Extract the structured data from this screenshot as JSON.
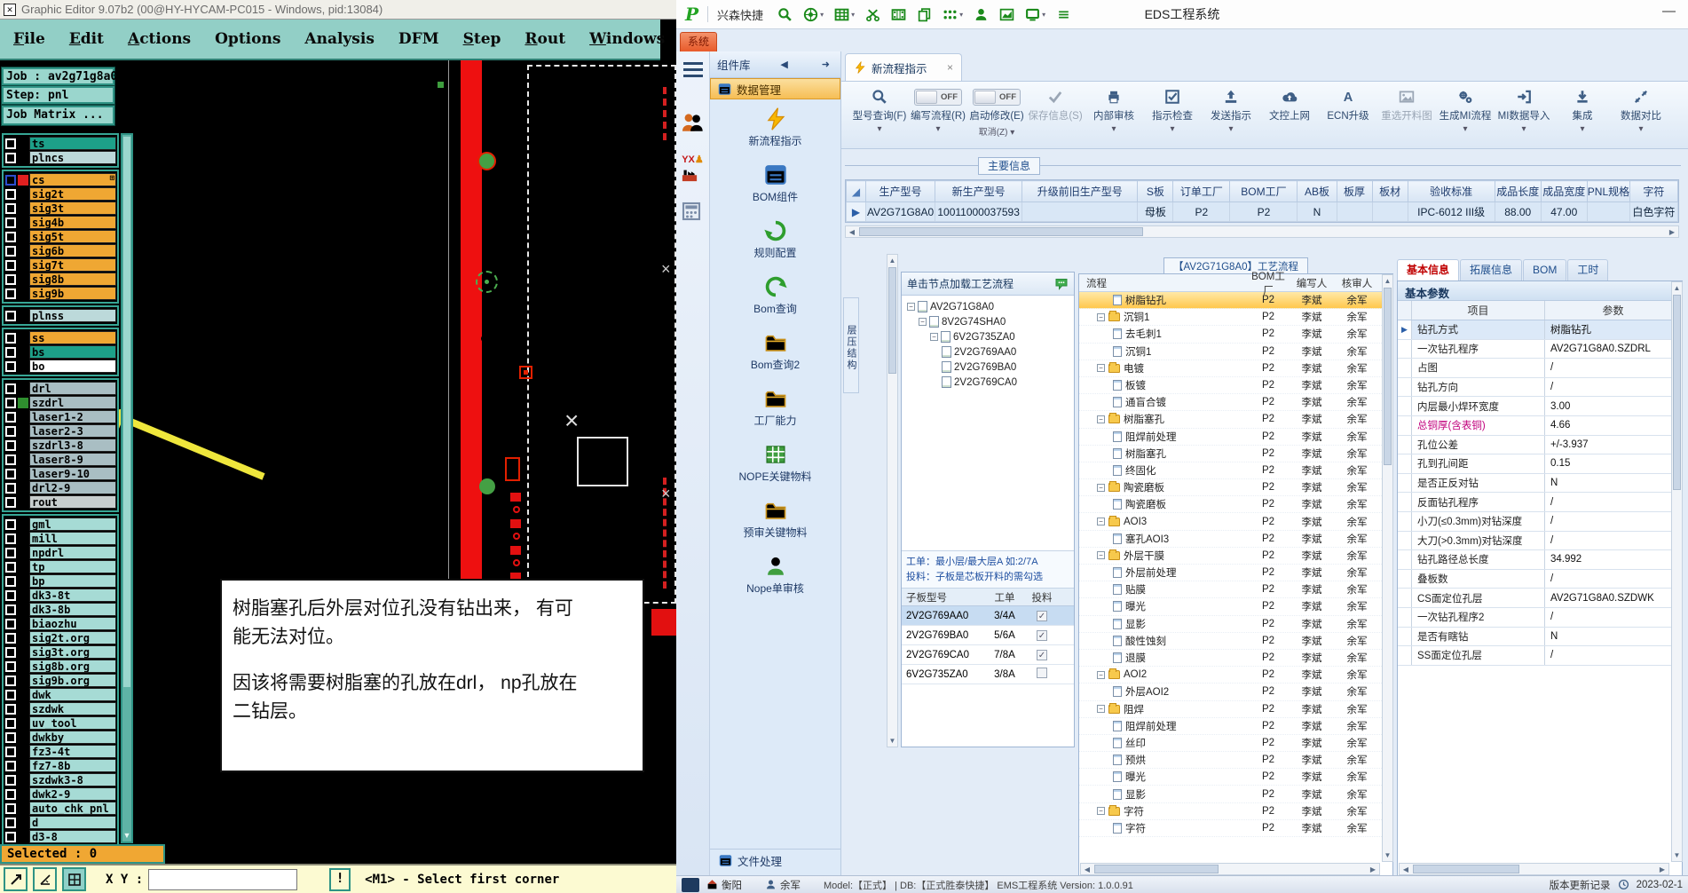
{
  "left_app": {
    "title": "Graphic Editor 9.07b2 (00@HY-HYCAM-PC015 - Windows, pid:13084)",
    "menus": [
      {
        "label": "File",
        "u": true
      },
      {
        "label": "Edit",
        "u": true
      },
      {
        "label": "Actions",
        "u": true
      },
      {
        "label": "Options",
        "u": false
      },
      {
        "label": "Analysis",
        "u": false
      },
      {
        "label": "DFM",
        "u": false
      },
      {
        "label": "Step",
        "u": true
      },
      {
        "label": "Rout",
        "u": true
      },
      {
        "label": "Windows",
        "u": true
      }
    ],
    "job_label": "Job : av2g71g8a0",
    "step_label": "Step: pnl",
    "job_matrix_label": "Job Matrix ...",
    "layer_groups": [
      {
        "layers": [
          {
            "n": "ts",
            "c": "teal"
          },
          {
            "n": "plncs",
            "c": "pale"
          }
        ]
      },
      {
        "layers": [
          {
            "n": "cs",
            "c": "orange",
            "sw": "red",
            "sel": true,
            "badge": "⊞"
          },
          {
            "n": "sig2t",
            "c": "orange"
          },
          {
            "n": "sig3t",
            "c": "orange"
          },
          {
            "n": "sig4b",
            "c": "orange"
          },
          {
            "n": "sig5t",
            "c": "orange"
          },
          {
            "n": "sig6b",
            "c": "orange"
          },
          {
            "n": "sig7t",
            "c": "orange"
          },
          {
            "n": "sig8b",
            "c": "orange"
          },
          {
            "n": "sig9b",
            "c": "orange"
          }
        ]
      },
      {
        "layers": [
          {
            "n": "plnss",
            "c": "pale"
          }
        ]
      },
      {
        "layers": [
          {
            "n": "ss",
            "c": "orange"
          },
          {
            "n": "bs",
            "c": "teal"
          },
          {
            "n": "bo",
            "c": "white"
          }
        ]
      },
      {
        "layers": [
          {
            "n": "drl",
            "c": "gray"
          },
          {
            "n": "szdrl",
            "c": "gray",
            "sw": "green"
          },
          {
            "n": "laser1-2",
            "c": "gray"
          },
          {
            "n": "laser2-3",
            "c": "gray"
          },
          {
            "n": "szdrl3-8",
            "c": "gray"
          },
          {
            "n": "laser8-9",
            "c": "gray"
          },
          {
            "n": "laser9-10",
            "c": "gray"
          },
          {
            "n": "drl2-9",
            "c": "gray"
          },
          {
            "n": "rout",
            "c": "lgray"
          }
        ]
      },
      {
        "layers": [
          {
            "n": "gml",
            "c": "cyan"
          },
          {
            "n": "mill",
            "c": "cyan"
          },
          {
            "n": "npdrl",
            "c": "cyan"
          },
          {
            "n": "tp",
            "c": "cyan"
          },
          {
            "n": "bp",
            "c": "cyan"
          },
          {
            "n": "dk3-8t",
            "c": "cyan"
          },
          {
            "n": "dk3-8b",
            "c": "cyan"
          },
          {
            "n": "biaozhu",
            "c": "cyan"
          },
          {
            "n": "sig2t.org",
            "c": "cyan"
          },
          {
            "n": "sig3t.org",
            "c": "cyan"
          },
          {
            "n": "sig8b.org",
            "c": "cyan"
          },
          {
            "n": "sig9b.org",
            "c": "cyan"
          },
          {
            "n": "dwk",
            "c": "cyan"
          },
          {
            "n": "szdwk",
            "c": "cyan"
          },
          {
            "n": "uv_tool",
            "c": "cyan"
          },
          {
            "n": "dwkby",
            "c": "cyan"
          },
          {
            "n": "fz3-4t",
            "c": "cyan"
          },
          {
            "n": "fz7-8b",
            "c": "cyan"
          },
          {
            "n": "szdwk3-8",
            "c": "cyan"
          },
          {
            "n": "dwk2-9",
            "c": "cyan"
          },
          {
            "n": "auto_chk_pnl",
            "c": "cyan"
          },
          {
            "n": "d",
            "c": "cyan"
          },
          {
            "n": "d3-8",
            "c": "cyan"
          }
        ]
      }
    ],
    "selected_label": "Selected : 0",
    "statusbar": {
      "xy_label": "X Y :",
      "input_value": "",
      "alert": "!",
      "prompt": "<M1> - Select first corner"
    },
    "annotation": {
      "lines": [
        "树脂塞孔后外层对位孔没有钻出来， 有可",
        "能无法对位。",
        "",
        "因该将需要树脂塞的孔放在drl， np孔放在",
        "二钻层。"
      ]
    }
  },
  "right_app": {
    "titlebar": {
      "logo": "P",
      "product": "兴森快捷",
      "title": "EDS工程系统",
      "minimize": "—",
      "icons": [
        {
          "n": "search-icon"
        },
        {
          "n": "globe-icon",
          "dd": true
        },
        {
          "n": "table-icon",
          "dd": true
        },
        {
          "n": "scissors-icon"
        },
        {
          "n": "film-icon"
        },
        {
          "n": "copy-icon"
        },
        {
          "n": "menu-dots-icon",
          "dd": true
        },
        {
          "n": "user-icon"
        },
        {
          "n": "chart-icon"
        },
        {
          "n": "monitor-icon",
          "dd": true
        },
        {
          "n": "lines-icon"
        }
      ]
    },
    "system_tab": "系统",
    "sidebar": {
      "header": "组件库",
      "nav_prev": "◀",
      "nav_pin": "➜",
      "selected_label": "数据管理",
      "items": [
        {
          "label": "新流程指示",
          "icon": "lightning"
        },
        {
          "label": "BOM组件",
          "icon": "window"
        },
        {
          "label": "规则配置",
          "icon": "recycle"
        },
        {
          "label": "Bom查询",
          "icon": "loop"
        },
        {
          "label": "Bom查询2",
          "icon": "folder"
        },
        {
          "label": "工厂能力",
          "icon": "folder"
        },
        {
          "label": "NOPE关键物料",
          "icon": "board"
        },
        {
          "label": "预审关键物料",
          "icon": "folder"
        },
        {
          "label": "Nope单审核",
          "icon": "persong"
        }
      ],
      "footer": "文件处理"
    },
    "doc_tab": {
      "label": "新流程指示",
      "close": "×"
    },
    "ribbon": [
      {
        "label": "型号查询(F)",
        "icon": "search",
        "sub": "▾"
      },
      {
        "label": "编写流程(R)",
        "toggle": "OFF",
        "sub": "▾"
      },
      {
        "label": "启动修改(E)",
        "toggle": "OFF",
        "sub": "取消(Z) ▾"
      },
      {
        "label": "保存信息(S)",
        "icon": "check",
        "disabled": true
      },
      {
        "label": "内部审核",
        "icon": "printer",
        "sub": "▾"
      },
      {
        "label": "指示检查",
        "icon": "checkbox",
        "sub": "▾"
      },
      {
        "label": "发送指示",
        "icon": "send",
        "sub": "▾"
      },
      {
        "label": "文控上网",
        "icon": "cloud"
      },
      {
        "label": "ECN升级",
        "icon": "ecn"
      },
      {
        "label": "重选开料图",
        "icon": "image",
        "disabled": true
      },
      {
        "label": "生成MI流程",
        "icon": "gears",
        "sub": "▾"
      },
      {
        "label": "MI数据导入",
        "icon": "import",
        "sub": "▾"
      },
      {
        "label": "集成",
        "icon": "download",
        "sub": "▾"
      },
      {
        "label": "数据对比",
        "icon": "compare",
        "sub": "▾"
      }
    ],
    "info_group_label": "主要信息",
    "table": {
      "columns": [
        "",
        "生产型号",
        "新生产型号",
        "升级前旧生产型号",
        "S板",
        "订单工厂",
        "BOM工厂",
        "AB板",
        "板厚",
        "板材",
        "验收标准",
        "成品长度",
        "成品宽度",
        "PNL规格",
        "字符"
      ],
      "row": [
        "AV2G71G8A0",
        "10011000037593",
        "",
        "母板",
        "P2",
        "P2",
        "N",
        "",
        "",
        "IPC-6012 III级",
        "88.00",
        "47.00",
        "",
        "白色字符"
      ],
      "row_marker": "▶",
      "corner_marker": "◢"
    },
    "stack_tab": "层压结构",
    "loader": {
      "header": "单击节点加载工艺流程",
      "tree": [
        {
          "n": "AV2G71G8A0",
          "level": 0,
          "exp": true
        },
        {
          "n": "8V2G74SHA0",
          "level": 1,
          "exp": true
        },
        {
          "n": "6V2G735ZA0",
          "level": 2,
          "exp": true
        },
        {
          "n": "2V2G769AA0",
          "level": 3
        },
        {
          "n": "2V2G769BA0",
          "level": 3
        },
        {
          "n": "2V2G769CA0",
          "level": 3
        }
      ],
      "hints": [
        "工单：最小层/最大层A 如:2/7A",
        "投料：子板是芯板开料的需勾选"
      ],
      "table": {
        "columns": [
          "子板型号",
          "工单",
          "投料"
        ],
        "rows": [
          {
            "model": "2V2G769AA0",
            "order": "3/4A",
            "checked": true,
            "selected": true
          },
          {
            "model": "2V2G769BA0",
            "order": "5/6A",
            "checked": true,
            "selected": false
          },
          {
            "model": "2V2G769CA0",
            "order": "7/8A",
            "checked": true,
            "selected": false
          },
          {
            "model": "6V2G735ZA0",
            "order": "3/8A",
            "checked": false,
            "selected": false
          }
        ]
      }
    },
    "flow": {
      "title": "【AV2G71G8A0】工艺流程",
      "columns": [
        "流程",
        "BOM工厂",
        "编写人",
        "核审人"
      ],
      "factory": "P2",
      "writer": "李斌",
      "reviewer": "余军",
      "rows": [
        {
          "n": "树脂钻孔",
          "t": "leaf",
          "hl": true
        },
        {
          "n": "沉铜1",
          "t": "folder"
        },
        {
          "n": "去毛刺1",
          "t": "leaf"
        },
        {
          "n": "沉铜1",
          "t": "leaf"
        },
        {
          "n": "电镀",
          "t": "folder"
        },
        {
          "n": "板镀",
          "t": "leaf"
        },
        {
          "n": "通盲合镀",
          "t": "leaf"
        },
        {
          "n": "树脂塞孔",
          "t": "folder"
        },
        {
          "n": "阻焊前处理",
          "t": "leaf"
        },
        {
          "n": "树脂塞孔",
          "t": "leaf"
        },
        {
          "n": "终固化",
          "t": "leaf"
        },
        {
          "n": "陶瓷磨板",
          "t": "folder"
        },
        {
          "n": "陶瓷磨板",
          "t": "leaf"
        },
        {
          "n": "AOI3",
          "t": "folder"
        },
        {
          "n": "塞孔AOI3",
          "t": "leaf"
        },
        {
          "n": "外层干膜",
          "t": "folder"
        },
        {
          "n": "外层前处理",
          "t": "leaf"
        },
        {
          "n": "贴膜",
          "t": "leaf"
        },
        {
          "n": "曝光",
          "t": "leaf"
        },
        {
          "n": "显影",
          "t": "leaf"
        },
        {
          "n": "酸性蚀刻",
          "t": "leaf"
        },
        {
          "n": "退膜",
          "t": "leaf"
        },
        {
          "n": "AOI2",
          "t": "folder"
        },
        {
          "n": "外层AOI2",
          "t": "leaf"
        },
        {
          "n": "阻焊",
          "t": "folder"
        },
        {
          "n": "阻焊前处理",
          "t": "leaf"
        },
        {
          "n": "丝印",
          "t": "leaf"
        },
        {
          "n": "预烘",
          "t": "leaf"
        },
        {
          "n": "曝光",
          "t": "leaf"
        },
        {
          "n": "显影",
          "t": "leaf"
        },
        {
          "n": "字符",
          "t": "folder"
        },
        {
          "n": "字符",
          "t": "leaf"
        }
      ]
    },
    "props": {
      "tabs": [
        {
          "label": "基本信息",
          "selected": true
        },
        {
          "label": "拓展信息",
          "selected": false
        },
        {
          "label": "BOM",
          "selected": false
        },
        {
          "label": "工时",
          "selected": false
        }
      ],
      "section": "基本参数",
      "columns": [
        "项目",
        "参数"
      ],
      "row_marker": "▶",
      "rows": [
        {
          "k": "钻孔方式",
          "v": "树脂钻孔",
          "sel": true
        },
        {
          "k": "一次钻孔程序",
          "v": "AV2G71G8A0.SZDRL"
        },
        {
          "k": "占图",
          "v": "/"
        },
        {
          "k": "钻孔方向",
          "v": "/"
        },
        {
          "k": "内层最小焊环宽度",
          "v": "3.00"
        },
        {
          "k": "总铜厚(含表铜)",
          "v": "4.66",
          "pink": true
        },
        {
          "k": "孔位公差",
          "v": "+/-3.937"
        },
        {
          "k": "孔到孔间距",
          "v": "0.15"
        },
        {
          "k": "是否正反对钻",
          "v": "N"
        },
        {
          "k": "反面钻孔程序",
          "v": "/"
        },
        {
          "k": "小刀(≤0.3mm)对钻深度",
          "v": "/"
        },
        {
          "k": "大刀(>0.3mm)对钻深度",
          "v": "/"
        },
        {
          "k": "钻孔路径总长度",
          "v": "34.992"
        },
        {
          "k": "叠板数",
          "v": "/"
        },
        {
          "k": "CS面定位孔层",
          "v": "AV2G71G8A0.SZDWK"
        },
        {
          "k": "一次钻孔程序2",
          "v": "/"
        },
        {
          "k": "是否有瞎钻",
          "v": "N"
        },
        {
          "k": "SS面定位孔层",
          "v": "/"
        }
      ]
    },
    "statusbar": {
      "site": "衡阳",
      "user": "余军",
      "model": "Model:【正式】",
      "db": "DB:【正式胜泰快捷】 EMS工程系统 Version: 1.0.0.91",
      "update_link": "版本更新记录",
      "date": "2023-02-1"
    }
  }
}
